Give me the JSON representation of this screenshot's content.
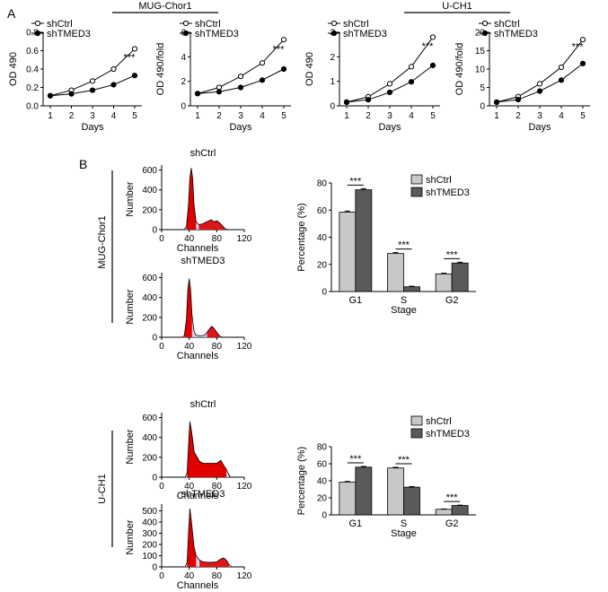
{
  "panel_labels": {
    "a": "A",
    "b": "B"
  },
  "group_labels": {
    "mug": "MUG-Chor1",
    "uch1": "U-CH1"
  },
  "colors": {
    "shCtrl_bar": "#c8c8c8",
    "shTMED3_bar": "#5a5a5a",
    "peak_red": "#e00000",
    "sphase_fill": "#c8c8ec"
  },
  "chart_data": [
    {
      "id": "line1",
      "type": "line",
      "ylabel": "OD 490",
      "xlabel": "Days",
      "x": [
        1,
        2,
        3,
        4,
        5
      ],
      "xticks": [
        "1",
        "2",
        "3",
        "4",
        "5"
      ],
      "ylim": [
        0,
        0.8
      ],
      "yticks": [
        "0.0",
        "0.2",
        "0.4",
        "0.6",
        "0.8"
      ],
      "series": [
        {
          "name": "shCtrl",
          "marker": "open",
          "values": [
            0.11,
            0.17,
            0.27,
            0.4,
            0.62
          ]
        },
        {
          "name": "shTMED3",
          "marker": "filled",
          "values": [
            0.11,
            0.13,
            0.17,
            0.23,
            0.33
          ]
        }
      ],
      "annotation": "***"
    },
    {
      "id": "line2",
      "type": "line",
      "ylabel": "OD 490/fold",
      "xlabel": "Days",
      "x": [
        1,
        2,
        3,
        4,
        5
      ],
      "xticks": [
        "1",
        "2",
        "3",
        "4",
        "5"
      ],
      "ylim": [
        0,
        6
      ],
      "yticks": [
        "0",
        "2",
        "4",
        "6"
      ],
      "series": [
        {
          "name": "shCtrl",
          "marker": "open",
          "values": [
            1.0,
            1.5,
            2.4,
            3.5,
            5.4
          ]
        },
        {
          "name": "shTMED3",
          "marker": "filled",
          "values": [
            1.0,
            1.15,
            1.5,
            2.1,
            3.0
          ]
        }
      ],
      "annotation": "***"
    },
    {
      "id": "line3",
      "type": "line",
      "ylabel": "OD 490",
      "xlabel": "Days",
      "x": [
        1,
        2,
        3,
        4,
        5
      ],
      "xticks": [
        "1",
        "2",
        "3",
        "4",
        "5"
      ],
      "ylim": [
        0,
        3
      ],
      "yticks": [
        "0",
        "1",
        "2",
        "3"
      ],
      "series": [
        {
          "name": "shCtrl",
          "marker": "open",
          "values": [
            0.15,
            0.37,
            0.9,
            1.6,
            2.8
          ]
        },
        {
          "name": "shTMED3",
          "marker": "filled",
          "values": [
            0.15,
            0.25,
            0.55,
            0.98,
            1.65
          ]
        }
      ],
      "annotation": "***"
    },
    {
      "id": "line4",
      "type": "line",
      "ylabel": "OD 490/fold",
      "xlabel": "Days",
      "x": [
        1,
        2,
        3,
        4,
        5
      ],
      "xticks": [
        "1",
        "2",
        "3",
        "4",
        "5"
      ],
      "ylim": [
        0,
        20
      ],
      "yticks": [
        "0",
        "5",
        "10",
        "15",
        "20"
      ],
      "series": [
        {
          "name": "shCtrl",
          "marker": "open",
          "values": [
            1.0,
            2.5,
            6.0,
            10.5,
            18.0
          ]
        },
        {
          "name": "shTMED3",
          "marker": "filled",
          "values": [
            1.0,
            1.7,
            4.0,
            7.0,
            11.5
          ]
        }
      ],
      "annotation": "***"
    },
    {
      "id": "hist1",
      "type": "area",
      "title": "shCtrl",
      "xlabel": "Channels",
      "ylabel": "Number",
      "xlim": [
        0,
        120
      ],
      "xticks": [
        "0",
        "40",
        "80",
        "120"
      ],
      "ylim": [
        0,
        650
      ],
      "yticks": [
        "0",
        "200",
        "400",
        "600"
      ],
      "x": [
        26,
        32,
        36,
        39,
        41,
        43,
        45,
        47,
        50,
        54,
        60,
        66,
        72,
        76,
        80,
        84,
        88,
        92,
        96
      ],
      "series": [
        {
          "values": [
            0,
            0,
            30,
            250,
            520,
            620,
            520,
            250,
            80,
            50,
            60,
            80,
            100,
            80,
            90,
            70,
            40,
            10,
            0
          ]
        }
      ]
    },
    {
      "id": "hist2",
      "type": "area",
      "title": "shTMED3",
      "xlabel": "Channels",
      "ylabel": "Number",
      "xlim": [
        0,
        120
      ],
      "xticks": [
        "0",
        "40",
        "80",
        "120"
      ],
      "ylim": [
        0,
        650
      ],
      "yticks": [
        "0",
        "200",
        "400",
        "600"
      ],
      "x": [
        26,
        30,
        33,
        36,
        38,
        40,
        42,
        44,
        47,
        50,
        56,
        62,
        66,
        70,
        73,
        76,
        80,
        84,
        88
      ],
      "series": [
        {
          "values": [
            0,
            0,
            20,
            180,
            480,
            590,
            480,
            230,
            60,
            20,
            15,
            20,
            50,
            90,
            110,
            90,
            50,
            15,
            0
          ]
        }
      ]
    },
    {
      "id": "bar1",
      "type": "bar",
      "categories": [
        "G1",
        "S",
        "G2"
      ],
      "xlabel": "Stage",
      "ylabel": "Percentage (%)",
      "ylim": [
        0,
        80
      ],
      "yticks": [
        "0",
        "20",
        "40",
        "60",
        "80"
      ],
      "series": [
        {
          "name": "shCtrl",
          "values": [
            58.5,
            28,
            13
          ],
          "errors": [
            0.8,
            0.7,
            0.5
          ]
        },
        {
          "name": "shTMED3",
          "values": [
            75,
            3.5,
            21
          ],
          "errors": [
            0.8,
            0.4,
            0.6
          ]
        }
      ],
      "annotations": [
        "***",
        "***",
        "***"
      ]
    },
    {
      "id": "hist3",
      "type": "area",
      "title": "shCtrl",
      "xlabel": "Channels",
      "ylabel": "Number",
      "xlim": [
        0,
        120
      ],
      "xticks": [
        "0",
        "40",
        "80",
        "120"
      ],
      "ylim": [
        0,
        650
      ],
      "yticks": [
        "0",
        "200",
        "400",
        "600"
      ],
      "x": [
        30,
        34,
        37,
        39,
        41,
        43,
        45,
        47,
        50,
        55,
        60,
        70,
        80,
        86,
        90,
        94,
        98,
        100
      ],
      "series": [
        {
          "values": [
            0,
            0,
            40,
            320,
            560,
            480,
            380,
            260,
            220,
            160,
            140,
            140,
            140,
            170,
            120,
            80,
            20,
            0
          ]
        }
      ]
    },
    {
      "id": "hist4",
      "type": "area",
      "title": "shTMED3",
      "xlabel": "Channels",
      "ylabel": "Number",
      "xlim": [
        0,
        120
      ],
      "xticks": [
        "0",
        "40",
        "80",
        "120"
      ],
      "ylim": [
        0,
        560
      ],
      "yticks": [
        "0",
        "100",
        "200",
        "300",
        "400",
        "500"
      ],
      "x": [
        30,
        34,
        37,
        39,
        41,
        43,
        45,
        47,
        50,
        55,
        60,
        70,
        80,
        86,
        90,
        94,
        98,
        102
      ],
      "series": [
        {
          "values": [
            0,
            0,
            40,
            300,
            520,
            420,
            300,
            180,
            100,
            60,
            45,
            40,
            45,
            70,
            80,
            60,
            20,
            0
          ]
        }
      ]
    },
    {
      "id": "bar2",
      "type": "bar",
      "categories": [
        "G1",
        "S",
        "G2"
      ],
      "xlabel": "Stage",
      "ylabel": "Percentage (%)",
      "ylim": [
        0,
        80
      ],
      "yticks": [
        "0",
        "20",
        "40",
        "60",
        "80"
      ],
      "series": [
        {
          "name": "shCtrl",
          "values": [
            38.5,
            55,
            6.5
          ],
          "errors": [
            0.7,
            0.8,
            0.4
          ]
        },
        {
          "name": "shTMED3",
          "values": [
            56,
            32.5,
            11
          ],
          "errors": [
            0.8,
            0.7,
            0.4
          ]
        }
      ],
      "annotations": [
        "***",
        "***",
        "***"
      ]
    }
  ]
}
